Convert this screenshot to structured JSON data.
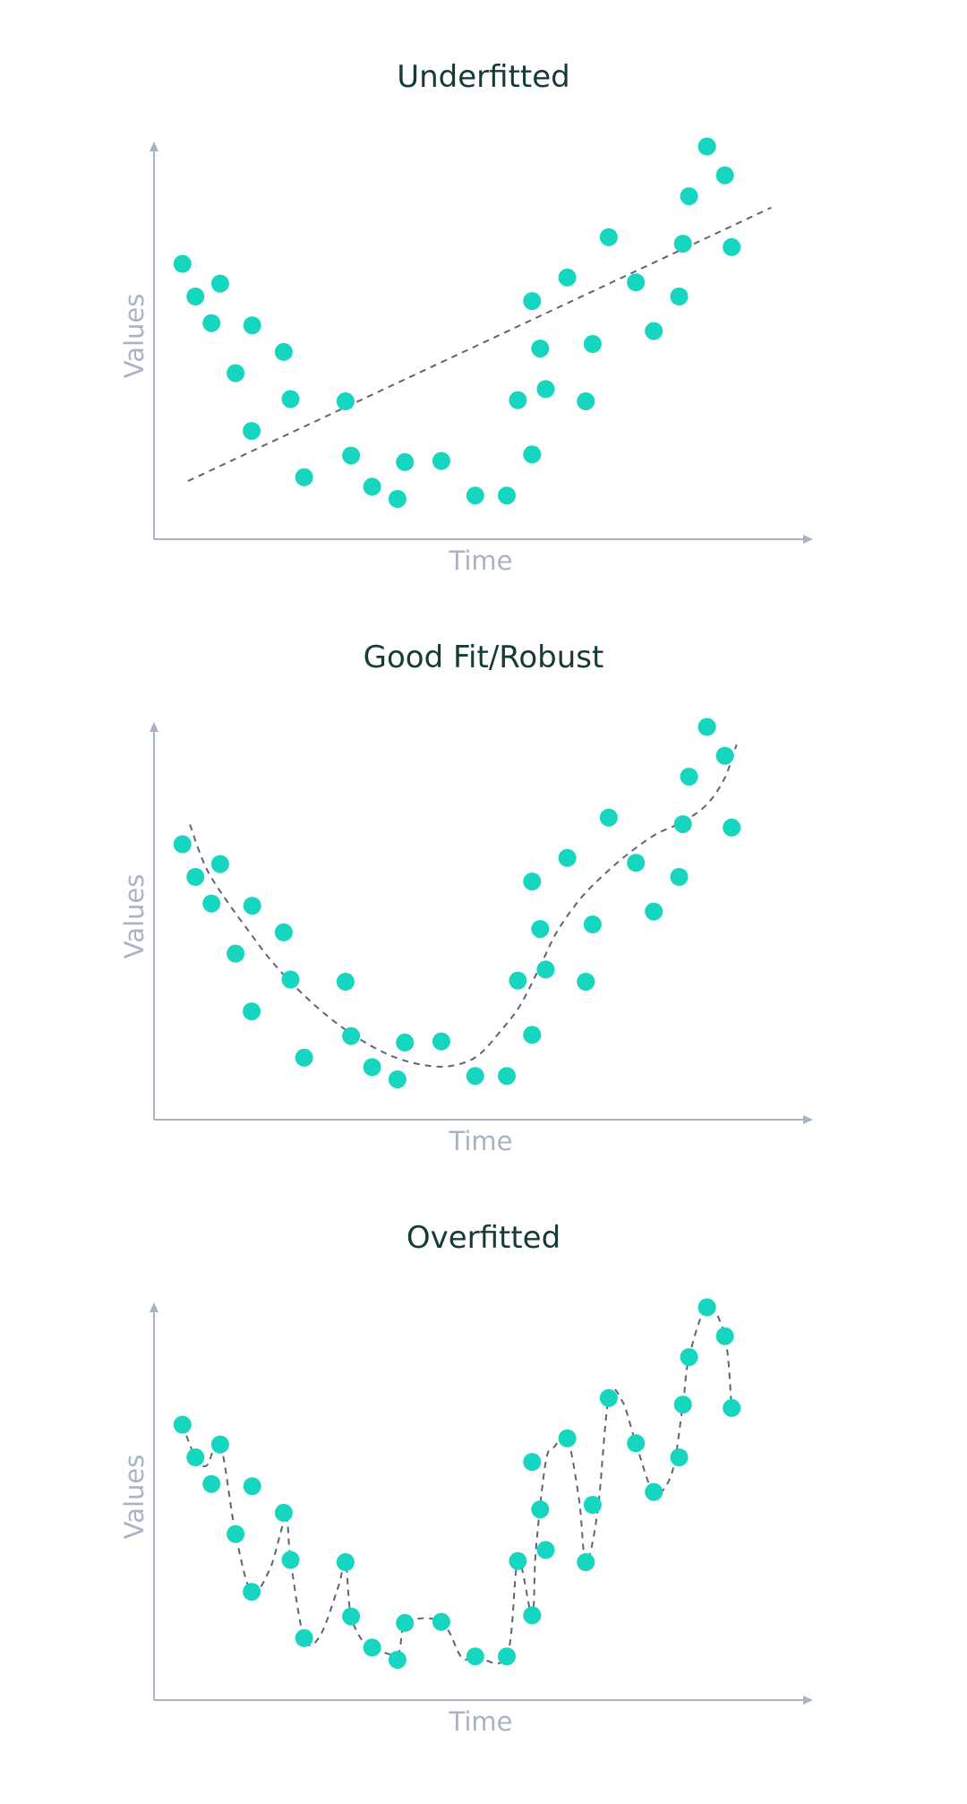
{
  "colors": {
    "point": "#16d6bf",
    "axis": "#a9b3c6",
    "axis_label": "#a9b3c6",
    "fit_line": "#5c6577",
    "title": "#163a35"
  },
  "chart_data": [
    {
      "type": "scatter",
      "title": "Underfitted",
      "xlabel": "Time",
      "ylabel": "Values",
      "xlim": [
        0,
        100
      ],
      "ylim": [
        0,
        100
      ],
      "grid": false,
      "points": [
        {
          "x": 3.3,
          "y": 67.8
        },
        {
          "x": 5.4,
          "y": 59.2
        },
        {
          "x": 8.0,
          "y": 52.2
        },
        {
          "x": 9.4,
          "y": 62.6
        },
        {
          "x": 11.9,
          "y": 39.0
        },
        {
          "x": 14.5,
          "y": 23.8
        },
        {
          "x": 14.6,
          "y": 51.6
        },
        {
          "x": 19.7,
          "y": 44.6
        },
        {
          "x": 20.8,
          "y": 32.2
        },
        {
          "x": 23.0,
          "y": 11.6
        },
        {
          "x": 29.7,
          "y": 31.6
        },
        {
          "x": 30.6,
          "y": 17.3
        },
        {
          "x": 34.0,
          "y": 9.1
        },
        {
          "x": 38.1,
          "y": 5.9
        },
        {
          "x": 39.3,
          "y": 15.6
        },
        {
          "x": 45.2,
          "y": 15.9
        },
        {
          "x": 50.7,
          "y": 6.8
        },
        {
          "x": 55.8,
          "y": 6.8
        },
        {
          "x": 57.6,
          "y": 31.9
        },
        {
          "x": 59.9,
          "y": 17.6
        },
        {
          "x": 59.9,
          "y": 58.0
        },
        {
          "x": 61.2,
          "y": 45.5
        },
        {
          "x": 62.1,
          "y": 34.8
        },
        {
          "x": 65.6,
          "y": 64.2
        },
        {
          "x": 68.6,
          "y": 31.6
        },
        {
          "x": 69.7,
          "y": 46.7
        },
        {
          "x": 72.3,
          "y": 74.8
        },
        {
          "x": 76.7,
          "y": 62.9
        },
        {
          "x": 79.6,
          "y": 50.1
        },
        {
          "x": 83.7,
          "y": 59.2
        },
        {
          "x": 84.3,
          "y": 73.1
        },
        {
          "x": 85.3,
          "y": 85.6
        },
        {
          "x": 88.2,
          "y": 98.7
        },
        {
          "x": 91.1,
          "y": 91.1
        },
        {
          "x": 92.2,
          "y": 72.2
        }
      ],
      "fit": {
        "kind": "linear",
        "x": [
          4.2,
          98.6
        ],
        "y": [
          10.6,
          82.6
        ]
      }
    },
    {
      "type": "scatter",
      "title": "Good Fit/Robust",
      "xlabel": "Time",
      "ylabel": "Values",
      "xlim": [
        0,
        100
      ],
      "ylim": [
        0,
        100
      ],
      "grid": false,
      "points": [
        {
          "x": 3.3,
          "y": 67.8
        },
        {
          "x": 5.4,
          "y": 59.2
        },
        {
          "x": 8.0,
          "y": 52.2
        },
        {
          "x": 9.4,
          "y": 62.6
        },
        {
          "x": 11.9,
          "y": 39.0
        },
        {
          "x": 14.5,
          "y": 23.8
        },
        {
          "x": 14.6,
          "y": 51.6
        },
        {
          "x": 19.7,
          "y": 44.6
        },
        {
          "x": 20.8,
          "y": 32.2
        },
        {
          "x": 23.0,
          "y": 11.6
        },
        {
          "x": 29.7,
          "y": 31.6
        },
        {
          "x": 30.6,
          "y": 17.3
        },
        {
          "x": 34.0,
          "y": 9.1
        },
        {
          "x": 38.1,
          "y": 5.9
        },
        {
          "x": 39.3,
          "y": 15.6
        },
        {
          "x": 45.2,
          "y": 15.9
        },
        {
          "x": 50.7,
          "y": 6.8
        },
        {
          "x": 55.8,
          "y": 6.8
        },
        {
          "x": 57.6,
          "y": 31.9
        },
        {
          "x": 59.9,
          "y": 17.6
        },
        {
          "x": 59.9,
          "y": 58.0
        },
        {
          "x": 61.2,
          "y": 45.5
        },
        {
          "x": 62.1,
          "y": 34.8
        },
        {
          "x": 65.6,
          "y": 64.2
        },
        {
          "x": 68.6,
          "y": 31.6
        },
        {
          "x": 69.7,
          "y": 46.7
        },
        {
          "x": 72.3,
          "y": 74.8
        },
        {
          "x": 76.7,
          "y": 62.9
        },
        {
          "x": 79.6,
          "y": 50.1
        },
        {
          "x": 83.7,
          "y": 59.2
        },
        {
          "x": 84.3,
          "y": 73.1
        },
        {
          "x": 85.3,
          "y": 85.6
        },
        {
          "x": 88.2,
          "y": 98.7
        },
        {
          "x": 91.1,
          "y": 91.1
        },
        {
          "x": 92.2,
          "y": 72.2
        }
      ],
      "fit": {
        "kind": "smooth",
        "x": [
          4.5,
          7.0,
          10.0,
          14.0,
          18.0,
          23.0,
          28.0,
          33.0,
          38.0,
          43.0,
          47.0,
          51.0,
          55.0,
          58.0,
          61.0,
          64.0,
          68.0,
          72.0,
          76.0,
          80.0,
          84.0,
          88.0,
          91.0,
          93.0
        ],
        "y": [
          73.0,
          62.0,
          54.0,
          45.0,
          36.5,
          28.0,
          21.0,
          15.5,
          11.5,
          9.5,
          9.5,
          12.0,
          19.0,
          25.5,
          35.0,
          45.0,
          54.0,
          60.5,
          66.0,
          70.5,
          73.5,
          78.0,
          85.0,
          94.0
        ]
      }
    },
    {
      "type": "scatter",
      "title": "Overfitted",
      "xlabel": "Time",
      "ylabel": "Values",
      "xlim": [
        0,
        100
      ],
      "ylim": [
        0,
        100
      ],
      "grid": false,
      "points": [
        {
          "x": 3.3,
          "y": 67.8
        },
        {
          "x": 5.4,
          "y": 59.2
        },
        {
          "x": 8.0,
          "y": 52.2
        },
        {
          "x": 9.4,
          "y": 62.6
        },
        {
          "x": 11.9,
          "y": 39.0
        },
        {
          "x": 14.5,
          "y": 23.8
        },
        {
          "x": 14.6,
          "y": 51.6
        },
        {
          "x": 19.7,
          "y": 44.6
        },
        {
          "x": 20.8,
          "y": 32.2
        },
        {
          "x": 23.0,
          "y": 11.6
        },
        {
          "x": 29.7,
          "y": 31.6
        },
        {
          "x": 30.6,
          "y": 17.3
        },
        {
          "x": 34.0,
          "y": 9.1
        },
        {
          "x": 38.1,
          "y": 5.9
        },
        {
          "x": 39.3,
          "y": 15.6
        },
        {
          "x": 45.2,
          "y": 15.9
        },
        {
          "x": 50.7,
          "y": 6.8
        },
        {
          "x": 55.8,
          "y": 6.8
        },
        {
          "x": 57.6,
          "y": 31.9
        },
        {
          "x": 59.9,
          "y": 17.6
        },
        {
          "x": 59.9,
          "y": 58.0
        },
        {
          "x": 61.2,
          "y": 45.5
        },
        {
          "x": 62.1,
          "y": 34.8
        },
        {
          "x": 65.6,
          "y": 64.2
        },
        {
          "x": 68.6,
          "y": 31.6
        },
        {
          "x": 69.7,
          "y": 46.7
        },
        {
          "x": 72.3,
          "y": 74.8
        },
        {
          "x": 76.7,
          "y": 62.9
        },
        {
          "x": 79.6,
          "y": 50.1
        },
        {
          "x": 83.7,
          "y": 59.2
        },
        {
          "x": 84.3,
          "y": 73.1
        },
        {
          "x": 85.3,
          "y": 85.6
        },
        {
          "x": 88.2,
          "y": 98.7
        },
        {
          "x": 91.1,
          "y": 91.1
        },
        {
          "x": 92.2,
          "y": 72.2
        }
      ],
      "fit": {
        "kind": "smooth",
        "x": [
          3.3,
          5.4,
          7.2,
          9.4,
          11.9,
          14.5,
          17.5,
          20.0,
          20.8,
          23.0,
          25.5,
          28.5,
          29.7,
          30.6,
          33.0,
          34.0,
          38.1,
          39.5,
          45.2,
          48.5,
          50.7,
          55.8,
          57.6,
          59.9,
          60.5,
          62.1,
          63.5,
          65.6,
          67.5,
          68.6,
          70.5,
          72.3,
          74.5,
          76.7,
          79.6,
          82.5,
          84.3,
          85.3,
          88.2,
          91.1,
          92.2
        ],
        "y": [
          67.8,
          59.2,
          57.0,
          62.6,
          39.0,
          23.8,
          30.0,
          43.0,
          32.2,
          11.6,
          12.0,
          25.0,
          31.6,
          17.3,
          9.5,
          9.1,
          7.5,
          15.6,
          15.9,
          6.5,
          6.8,
          6.8,
          31.9,
          17.6,
          34.8,
          58.0,
          62.0,
          64.2,
          48.0,
          31.6,
          45.0,
          74.8,
          74.0,
          62.9,
          50.1,
          55.0,
          73.1,
          85.6,
          98.7,
          91.1,
          72.2
        ]
      }
    }
  ]
}
